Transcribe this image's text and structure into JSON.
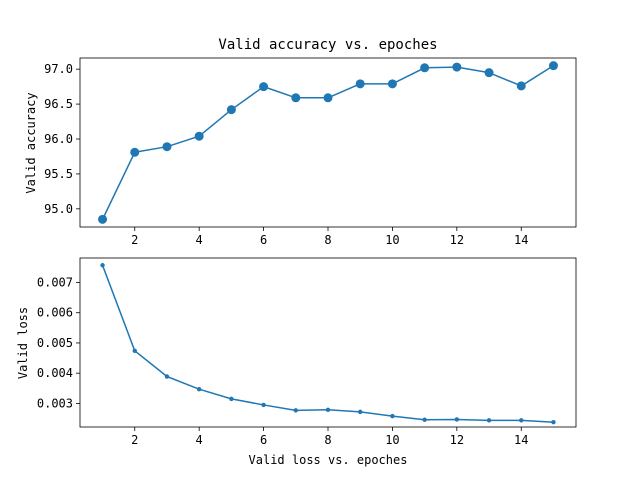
{
  "chart_data": [
    {
      "type": "line",
      "title": "Valid accuracy vs. epoches",
      "xlabel": "",
      "ylabel": "Valid accuracy",
      "x": [
        1,
        2,
        3,
        4,
        5,
        6,
        7,
        8,
        9,
        10,
        11,
        12,
        13,
        14,
        15
      ],
      "series": [
        {
          "values": [
            94.85,
            95.81,
            95.89,
            96.04,
            96.42,
            96.75,
            96.59,
            96.59,
            96.79,
            96.79,
            97.02,
            97.03,
            96.95,
            96.76,
            97.05
          ],
          "marker": "large-circle",
          "color": "#1f77b4"
        }
      ],
      "xlim": [
        0.3,
        15.7
      ],
      "ylim": [
        94.74,
        97.16
      ],
      "xticks": [
        2,
        4,
        6,
        8,
        10,
        12,
        14
      ],
      "xtick_labels": [
        "2",
        "4",
        "6",
        "8",
        "10",
        "12",
        "14"
      ],
      "yticks": [
        95.0,
        95.5,
        96.0,
        96.5,
        97.0
      ],
      "ytick_labels": [
        "95.0",
        "95.5",
        "96.0",
        "96.5",
        "97.0"
      ],
      "grid": false
    },
    {
      "type": "line",
      "title": "",
      "xlabel": "Valid loss vs. epoches",
      "ylabel": "Valid loss",
      "x": [
        1,
        2,
        3,
        4,
        5,
        6,
        7,
        8,
        9,
        10,
        11,
        12,
        13,
        14,
        15
      ],
      "series": [
        {
          "values": [
            0.00757,
            0.00474,
            0.00389,
            0.00347,
            0.00315,
            0.00295,
            0.00277,
            0.00279,
            0.00272,
            0.00258,
            0.00246,
            0.00247,
            0.00244,
            0.00244,
            0.00238
          ],
          "marker": "small-circle",
          "color": "#1f77b4"
        }
      ],
      "xlim": [
        0.3,
        15.7
      ],
      "ylim": [
        0.00222,
        0.00781
      ],
      "xticks": [
        2,
        4,
        6,
        8,
        10,
        12,
        14
      ],
      "xtick_labels": [
        "2",
        "4",
        "6",
        "8",
        "10",
        "12",
        "14"
      ],
      "yticks": [
        0.003,
        0.004,
        0.005,
        0.006,
        0.007
      ],
      "ytick_labels": [
        "0.003",
        "0.004",
        "0.005",
        "0.006",
        "0.007"
      ],
      "grid": false
    }
  ]
}
